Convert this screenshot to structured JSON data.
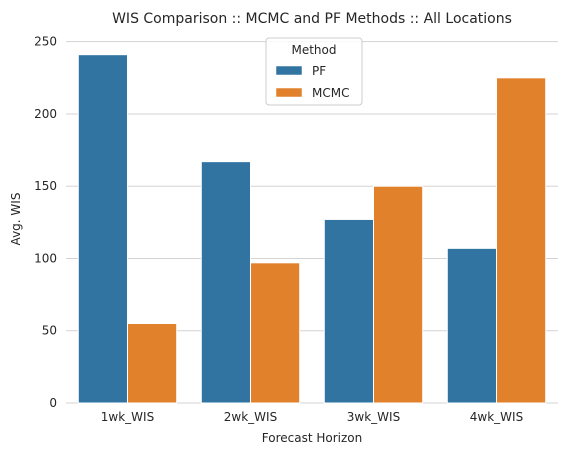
{
  "chart_data": {
    "type": "bar",
    "title": "WIS Comparison :: MCMC and PF Methods :: All Locations",
    "xlabel": "Forecast Horizon",
    "ylabel": "Avg. WIS",
    "categories": [
      "1wk_WIS",
      "2wk_WIS",
      "3wk_WIS",
      "4wk_WIS"
    ],
    "ylim": [
      0,
      256
    ],
    "yticks": [
      0,
      50,
      100,
      150,
      200,
      250
    ],
    "grid": "horizontal",
    "legend": {
      "title": "Method",
      "placement": "top-center"
    },
    "series": [
      {
        "name": "PF",
        "color": "#3274a1",
        "values": [
          241,
          167,
          127,
          107
        ]
      },
      {
        "name": "MCMC",
        "color": "#e1812c",
        "values": [
          55,
          97,
          150,
          225
        ]
      }
    ]
  }
}
